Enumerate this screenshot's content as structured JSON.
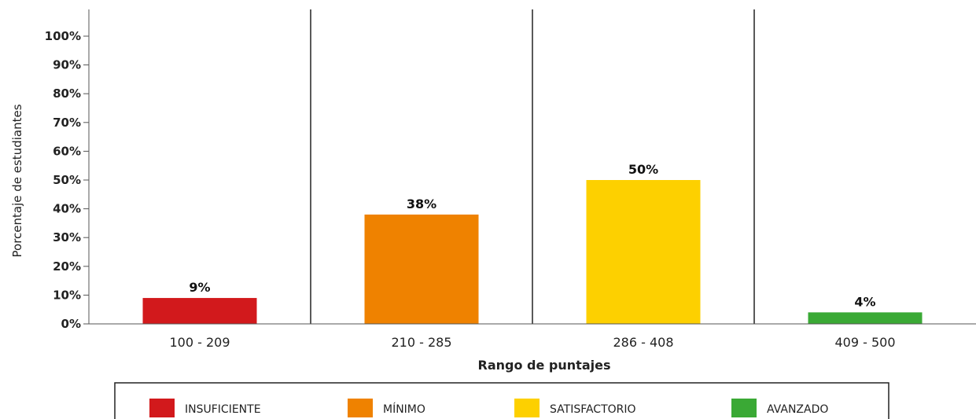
{
  "chart_data": {
    "type": "bar",
    "categories": [
      "100 - 209",
      "210 - 285",
      "286 - 408",
      "409 - 500"
    ],
    "values": [
      9,
      38,
      50,
      4
    ],
    "data_labels": [
      "9%",
      "38%",
      "50%",
      "4%"
    ],
    "colors": [
      "#d2191c",
      "#ef8200",
      "#fdd000",
      "#3aa935"
    ],
    "xlabel": "Rango de puntajes",
    "ylabel": "Porcentaje de estudiantes",
    "ylim": [
      0,
      100
    ],
    "yticks": [
      "0%",
      "10%",
      "20%",
      "30%",
      "40%",
      "50%",
      "60%",
      "70%",
      "80%",
      "90%",
      "100%"
    ],
    "grid": false,
    "legend_position": "bottom",
    "legend": [
      {
        "label": "INSUFICIENTE",
        "color": "#d2191c"
      },
      {
        "label": "MÍNIMO",
        "color": "#ef8200"
      },
      {
        "label": "SATISFACTORIO",
        "color": "#fdd000"
      },
      {
        "label": "AVANZADO",
        "color": "#3aa935"
      }
    ]
  }
}
